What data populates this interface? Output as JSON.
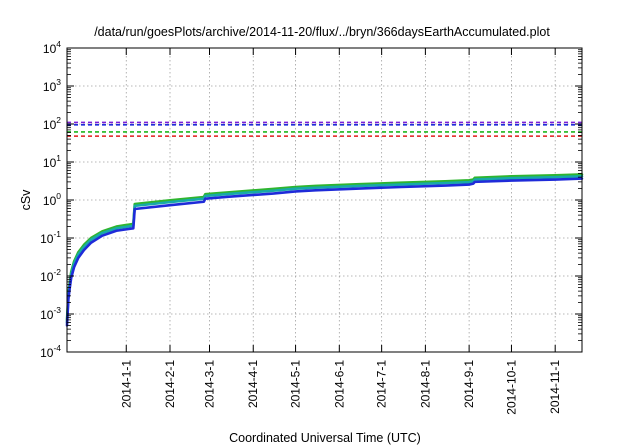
{
  "chart_data": {
    "type": "line",
    "title": "/data/run/goesPlots/archive/2014-11-20/flux/../bryn/366daysEarthAccumulated.plot",
    "xlabel": "Coordinated Universal Time (UTC)",
    "ylabel": "cSv",
    "yscale": "log",
    "ylim": [
      0.0001,
      10000
    ],
    "xlim": [
      "2013-11-20",
      "2014-11-20"
    ],
    "grid": true,
    "y_ticks": [
      {
        "base": "10",
        "exp": "-4",
        "value": 0.0001
      },
      {
        "base": "10",
        "exp": "-3",
        "value": 0.001
      },
      {
        "base": "10",
        "exp": "-2",
        "value": 0.01
      },
      {
        "base": "10",
        "exp": "-1",
        "value": 0.1
      },
      {
        "base": "10",
        "exp": "0",
        "value": 1
      },
      {
        "base": "10",
        "exp": "1",
        "value": 10
      },
      {
        "base": "10",
        "exp": "2",
        "value": 100
      },
      {
        "base": "10",
        "exp": "3",
        "value": 1000
      },
      {
        "base": "10",
        "exp": "4",
        "value": 10000
      }
    ],
    "x_ticks": [
      {
        "label": "2014-1-1",
        "date": "2014-01-01"
      },
      {
        "label": "2014-2-1",
        "date": "2014-02-01"
      },
      {
        "label": "2014-3-1",
        "date": "2014-03-01"
      },
      {
        "label": "2014-4-1",
        "date": "2014-04-01"
      },
      {
        "label": "2014-5-1",
        "date": "2014-05-01"
      },
      {
        "label": "2014-6-1",
        "date": "2014-06-01"
      },
      {
        "label": "2014-7-1",
        "date": "2014-07-01"
      },
      {
        "label": "2014-8-1",
        "date": "2014-08-01"
      },
      {
        "label": "2014-9-1",
        "date": "2014-09-01"
      },
      {
        "label": "2014-10-1",
        "date": "2014-10-01"
      },
      {
        "label": "2014-11-1",
        "date": "2014-11-01"
      }
    ],
    "reference_lines": [
      {
        "color": "#7b1fd6",
        "y": 110
      },
      {
        "color": "#1f2bd9",
        "y": 95
      },
      {
        "color": "#1fb81f",
        "y": 62
      },
      {
        "color": "#e01b1b",
        "y": 48
      }
    ],
    "series": [
      {
        "color": "#2fb52f",
        "x": [
          "2013-11-20",
          "2013-11-21",
          "2013-11-22",
          "2013-11-23",
          "2013-11-25",
          "2013-11-28",
          "2013-12-02",
          "2013-12-07",
          "2013-12-15",
          "2013-12-25",
          "2014-01-06",
          "2014-01-07",
          "2014-02-01",
          "2014-02-25",
          "2014-02-26",
          "2014-03-15",
          "2014-04-15",
          "2014-05-01",
          "2014-05-15",
          "2014-06-15",
          "2014-07-15",
          "2014-08-15",
          "2014-09-01",
          "2014-09-04",
          "2014-09-05",
          "2014-10-01",
          "2014-11-01",
          "2014-11-20"
        ],
        "values": [
          0.0007,
          0.0035,
          0.007,
          0.013,
          0.024,
          0.042,
          0.066,
          0.1,
          0.15,
          0.2,
          0.235,
          0.78,
          0.98,
          1.2,
          1.42,
          1.6,
          1.95,
          2.2,
          2.35,
          2.6,
          2.85,
          3.1,
          3.3,
          3.45,
          3.85,
          4.2,
          4.45,
          4.7
        ]
      },
      {
        "color": "#17a9a9",
        "x": [
          "2013-11-20",
          "2013-11-21",
          "2013-11-22",
          "2013-11-23",
          "2013-11-25",
          "2013-11-28",
          "2013-12-02",
          "2013-12-07",
          "2013-12-15",
          "2013-12-25",
          "2014-01-06",
          "2014-01-07",
          "2014-02-01",
          "2014-02-25",
          "2014-02-26",
          "2014-03-15",
          "2014-04-15",
          "2014-05-01",
          "2014-05-15",
          "2014-06-15",
          "2014-07-15",
          "2014-08-15",
          "2014-09-01",
          "2014-09-04",
          "2014-09-05",
          "2014-10-01",
          "2014-11-01",
          "2014-11-20"
        ],
        "values": [
          0.0006,
          0.003,
          0.006,
          0.011,
          0.021,
          0.037,
          0.058,
          0.09,
          0.135,
          0.18,
          0.21,
          0.7,
          0.88,
          1.08,
          1.28,
          1.44,
          1.75,
          1.98,
          2.1,
          2.35,
          2.55,
          2.8,
          2.95,
          3.1,
          3.45,
          3.75,
          4.0,
          4.2
        ]
      },
      {
        "color": "#1f2bd9",
        "x": [
          "2013-11-20",
          "2013-11-21",
          "2013-11-22",
          "2013-11-23",
          "2013-11-25",
          "2013-11-28",
          "2013-12-02",
          "2013-12-07",
          "2013-12-15",
          "2013-12-25",
          "2014-01-06",
          "2014-01-07",
          "2014-02-01",
          "2014-02-25",
          "2014-02-26",
          "2014-03-15",
          "2014-04-15",
          "2014-05-01",
          "2014-05-15",
          "2014-06-15",
          "2014-07-15",
          "2014-08-15",
          "2014-09-01",
          "2014-09-04",
          "2014-09-05",
          "2014-10-01",
          "2014-11-01",
          "2014-11-20"
        ],
        "values": [
          0.0005,
          0.0025,
          0.005,
          0.009,
          0.017,
          0.03,
          0.048,
          0.075,
          0.115,
          0.155,
          0.18,
          0.58,
          0.73,
          0.9,
          1.08,
          1.22,
          1.48,
          1.68,
          1.8,
          2.0,
          2.2,
          2.4,
          2.55,
          2.7,
          3.0,
          3.25,
          3.45,
          3.65
        ]
      }
    ]
  }
}
